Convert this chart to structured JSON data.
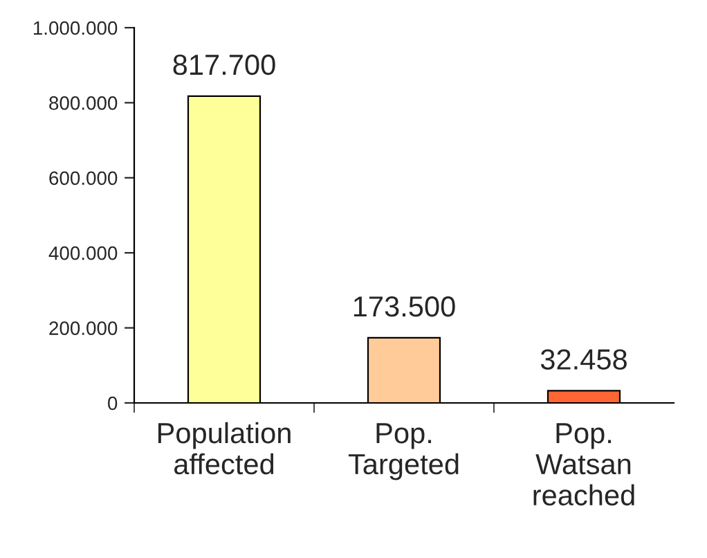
{
  "chart_data": {
    "type": "bar",
    "categories": [
      "Population\naffected",
      "Pop.\nTargeted",
      "Pop.\nWatsan\nreached"
    ],
    "values": [
      817700,
      173500,
      32458
    ],
    "colors": [
      "#ffff99",
      "#ffcc99",
      "#ff6633"
    ],
    "value_labels": [
      "817.700",
      "173.500",
      "32.458"
    ],
    "ylim": [
      0,
      1000000
    ],
    "yticks": [
      {
        "value": 0,
        "label": "0"
      },
      {
        "value": 200000,
        "label": "200.000"
      },
      {
        "value": 400000,
        "label": "400.000"
      },
      {
        "value": 600000,
        "label": "600.000"
      },
      {
        "value": 800000,
        "label": "800.000"
      },
      {
        "value": 1000000,
        "label": "1.000.000"
      }
    ],
    "grid": false,
    "legend": false
  }
}
